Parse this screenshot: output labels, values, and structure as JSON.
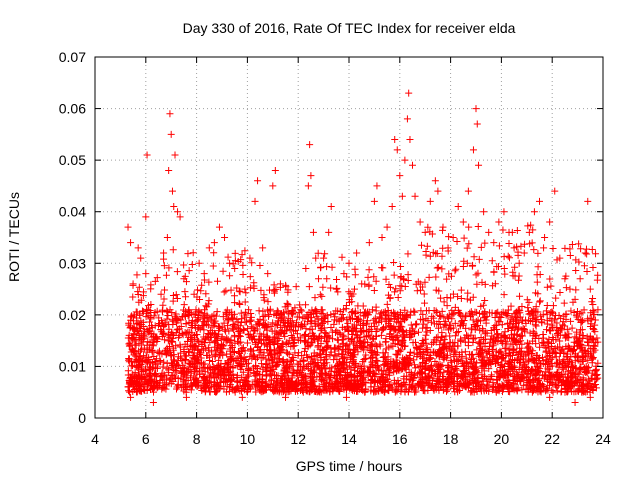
{
  "chart_data": {
    "type": "scatter",
    "title": "Day 330 of 2016, Rate Of TEC Index for receiver elda",
    "xlabel": "GPS time / hours",
    "ylabel": "ROTI / TECUs",
    "xlim": [
      4,
      24
    ],
    "ylim": [
      0,
      0.07
    ],
    "x_ticks": [
      4,
      6,
      8,
      10,
      12,
      14,
      16,
      18,
      20,
      22,
      24
    ],
    "x_tick_labels": [
      "4",
      "6",
      "8",
      "10",
      "12",
      "14",
      "16",
      "18",
      "20",
      "22",
      "24"
    ],
    "y_ticks": [
      0,
      0.01,
      0.02,
      0.03,
      0.04,
      0.05,
      0.06,
      0.07
    ],
    "y_tick_labels": [
      "0",
      "0.01",
      "0.02",
      "0.03",
      "0.04",
      "0.05",
      "0.06",
      "0.07"
    ],
    "grid": true,
    "marker": "+",
    "series": [
      {
        "name": "ROTI",
        "color": "#ff0000",
        "x_range": [
          5.3,
          23.8
        ],
        "approx_baseline": 0.012,
        "points": [
          [
            5.3,
            0.037
          ],
          [
            5.4,
            0.034
          ],
          [
            5.5,
            0.026
          ],
          [
            5.6,
            0.012
          ],
          [
            5.7,
            0.033
          ],
          [
            5.8,
            0.031
          ],
          [
            5.9,
            0.009
          ],
          [
            6.0,
            0.028
          ],
          [
            6.0,
            0.039
          ],
          [
            6.05,
            0.051
          ],
          [
            6.2,
            0.022
          ],
          [
            6.3,
            0.014
          ],
          [
            6.5,
            0.018
          ],
          [
            6.6,
            0.024
          ],
          [
            6.7,
            0.032
          ],
          [
            6.85,
            0.035
          ],
          [
            6.9,
            0.048
          ],
          [
            6.95,
            0.059
          ],
          [
            7.0,
            0.055
          ],
          [
            7.05,
            0.044
          ],
          [
            7.1,
            0.041
          ],
          [
            7.15,
            0.051
          ],
          [
            7.25,
            0.04
          ],
          [
            7.35,
            0.039
          ],
          [
            7.5,
            0.027
          ],
          [
            7.7,
            0.021
          ],
          [
            7.9,
            0.024
          ],
          [
            8.1,
            0.03
          ],
          [
            8.3,
            0.028
          ],
          [
            8.5,
            0.033
          ],
          [
            8.7,
            0.034
          ],
          [
            8.9,
            0.037
          ],
          [
            9.1,
            0.035
          ],
          [
            9.3,
            0.03
          ],
          [
            9.5,
            0.029
          ],
          [
            9.7,
            0.022
          ],
          [
            9.9,
            0.025
          ],
          [
            10.1,
            0.031
          ],
          [
            10.3,
            0.042
          ],
          [
            10.4,
            0.046
          ],
          [
            10.6,
            0.033
          ],
          [
            10.8,
            0.028
          ],
          [
            11.0,
            0.045
          ],
          [
            11.1,
            0.048
          ],
          [
            11.3,
            0.026
          ],
          [
            11.6,
            0.022
          ],
          [
            11.9,
            0.017
          ],
          [
            12.1,
            0.021
          ],
          [
            12.3,
            0.029
          ],
          [
            12.4,
            0.045
          ],
          [
            12.45,
            0.053
          ],
          [
            12.5,
            0.047
          ],
          [
            12.6,
            0.036
          ],
          [
            12.8,
            0.027
          ],
          [
            13.0,
            0.031
          ],
          [
            13.2,
            0.036
          ],
          [
            13.3,
            0.041
          ],
          [
            13.5,
            0.025
          ],
          [
            13.8,
            0.028
          ],
          [
            14.0,
            0.03
          ],
          [
            14.3,
            0.032
          ],
          [
            14.5,
            0.026
          ],
          [
            14.8,
            0.034
          ],
          [
            15.0,
            0.042
          ],
          [
            15.1,
            0.045
          ],
          [
            15.3,
            0.035
          ],
          [
            15.5,
            0.037
          ],
          [
            15.7,
            0.041
          ],
          [
            15.8,
            0.054
          ],
          [
            15.9,
            0.052
          ],
          [
            16.0,
            0.047
          ],
          [
            16.1,
            0.043
          ],
          [
            16.2,
            0.05
          ],
          [
            16.3,
            0.058
          ],
          [
            16.35,
            0.063
          ],
          [
            16.4,
            0.054
          ],
          [
            16.5,
            0.049
          ],
          [
            16.6,
            0.043
          ],
          [
            16.8,
            0.038
          ],
          [
            17.0,
            0.036
          ],
          [
            17.2,
            0.042
          ],
          [
            17.4,
            0.046
          ],
          [
            17.5,
            0.044
          ],
          [
            17.7,
            0.037
          ],
          [
            17.9,
            0.033
          ],
          [
            18.1,
            0.035
          ],
          [
            18.3,
            0.041
          ],
          [
            18.5,
            0.038
          ],
          [
            18.7,
            0.044
          ],
          [
            18.9,
            0.052
          ],
          [
            19.0,
            0.06
          ],
          [
            19.05,
            0.057
          ],
          [
            19.1,
            0.049
          ],
          [
            19.3,
            0.04
          ],
          [
            19.5,
            0.036
          ],
          [
            19.7,
            0.034
          ],
          [
            19.9,
            0.038
          ],
          [
            20.1,
            0.04
          ],
          [
            20.3,
            0.036
          ],
          [
            20.5,
            0.033
          ],
          [
            20.7,
            0.03
          ],
          [
            20.9,
            0.032
          ],
          [
            21.1,
            0.036
          ],
          [
            21.3,
            0.04
          ],
          [
            21.5,
            0.042
          ],
          [
            21.7,
            0.035
          ],
          [
            21.9,
            0.038
          ],
          [
            22.1,
            0.044
          ],
          [
            22.3,
            0.031
          ],
          [
            22.5,
            0.027
          ],
          [
            22.7,
            0.025
          ],
          [
            22.9,
            0.023
          ],
          [
            23.1,
            0.027
          ],
          [
            23.3,
            0.032
          ],
          [
            23.4,
            0.042
          ],
          [
            23.5,
            0.025
          ],
          [
            23.6,
            0.022
          ],
          [
            23.7,
            0.019
          ],
          [
            23.8,
            0.021
          ],
          [
            5.4,
            0.004
          ],
          [
            6.3,
            0.003
          ],
          [
            7.6,
            0.004
          ],
          [
            9.8,
            0.004
          ],
          [
            11.5,
            0.004
          ],
          [
            12.2,
            0.005
          ],
          [
            13.9,
            0.004
          ],
          [
            15.4,
            0.005
          ],
          [
            17.6,
            0.006
          ],
          [
            19.8,
            0.005
          ],
          [
            21.9,
            0.004
          ],
          [
            22.9,
            0.003
          ],
          [
            23.5,
            0.004
          ]
        ]
      }
    ]
  }
}
